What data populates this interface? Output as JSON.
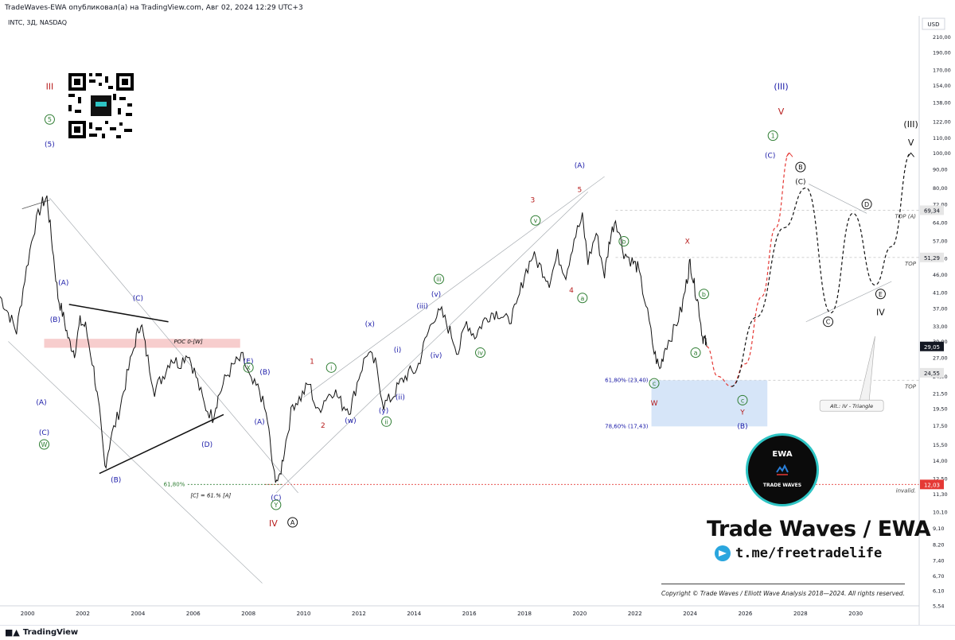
{
  "header": {
    "publisher_line": "TradeWaves-EWA опубликовал(а) на TradingView.com, Авг 02, 2024 12:29 UTC+3",
    "symbol_line": "INTC, 3Д, NASDAQ"
  },
  "footer": {
    "tradingview_label": "TradingView"
  },
  "branding": {
    "title": "Trade Waves / EWA",
    "telegram": "t.me/freetradelife",
    "copyright": "Copyright © Trade Waves / Elliott Wave Analysis 2018—2024. All rights reserved.",
    "badge_top": "EWA",
    "badge_bottom": "TRADE WAVES"
  },
  "colors": {
    "blue_label": "#1a1aa8",
    "red_label": "#b71c1c",
    "green_label": "#2e7d32",
    "black_label": "#111111",
    "candle": "#111111",
    "projection_red": "#e53935",
    "projection_black": "#111111",
    "zone_fill": "#cfe0f7",
    "poc_fill": "#f4b8b8",
    "invalid_line": "#e53935"
  },
  "chart_data": {
    "type": "candlestick",
    "title": "",
    "xlabel": "",
    "ylabel": "USD",
    "y_scale": "log",
    "ylim": [
      5.54,
      240
    ],
    "xlim": [
      1999,
      2032.3
    ],
    "x_ticks": [
      "2000",
      "2002",
      "2004",
      "2006",
      "2008",
      "2010",
      "2012",
      "2014",
      "2016",
      "2018",
      "2020",
      "2022",
      "2024",
      "2026",
      "2028",
      "2030"
    ],
    "y_ticks": [
      5.54,
      6.1,
      6.7,
      7.4,
      8.2,
      9.1,
      10.1,
      11.3,
      12.5,
      14.0,
      15.5,
      17.5,
      19.5,
      21.5,
      24.0,
      27.0,
      30.0,
      33.0,
      37.0,
      41.0,
      46.0,
      51.0,
      57.0,
      64.0,
      72.0,
      80.0,
      90.0,
      100.0,
      110.0,
      122.0,
      138.0,
      154.0,
      170.0,
      190.0,
      210.0,
      240.0
    ],
    "y_tick_labels": [
      "5,54",
      "6,10",
      "6,70",
      "7,40",
      "8,20",
      "9,10",
      "10,10",
      "11,30",
      "12,50",
      "14,00",
      "15,50",
      "17,50",
      "19,50",
      "21,50",
      "24,00",
      "27,00",
      "30,00",
      "33,00",
      "37,00",
      "41,00",
      "46,00",
      "51,00",
      "57,00",
      "64,00",
      "72,00",
      "80,00",
      "90,00",
      "100,00",
      "110,00",
      "122,00",
      "138,00",
      "154,00",
      "170,00",
      "190,00",
      "210,00",
      "240,00"
    ],
    "price_labels": [
      {
        "value": 69.34,
        "text": "69,34",
        "style": "gray"
      },
      {
        "value": 51.29,
        "text": "51,29",
        "style": "gray"
      },
      {
        "value": 29.05,
        "text": "29,05",
        "style": "dark"
      },
      {
        "value": 24.55,
        "text": "24,55",
        "style": "gray"
      },
      {
        "value": 12.03,
        "text": "12,03",
        "style": "red"
      }
    ],
    "horizontal_levels": [
      {
        "value": 69.34,
        "label": "TOP (A)"
      },
      {
        "value": 51.29,
        "label": "TOP"
      },
      {
        "value": 23.4,
        "label": "TOP"
      },
      {
        "value": 12.03,
        "label": "invalid."
      }
    ],
    "price_path": [
      [
        1999.0,
        40
      ],
      [
        1999.3,
        36
      ],
      [
        1999.6,
        32
      ],
      [
        1999.9,
        45
      ],
      [
        2000.2,
        60
      ],
      [
        2000.5,
        72
      ],
      [
        2000.7,
        75
      ],
      [
        2000.9,
        55
      ],
      [
        2001.1,
        40
      ],
      [
        2001.3,
        35
      ],
      [
        2001.5,
        30
      ],
      [
        2001.7,
        28
      ],
      [
        2001.9,
        34
      ],
      [
        2002.1,
        33
      ],
      [
        2002.4,
        25
      ],
      [
        2002.6,
        19
      ],
      [
        2002.8,
        13.5
      ],
      [
        2003.0,
        16
      ],
      [
        2003.3,
        19
      ],
      [
        2003.6,
        24
      ],
      [
        2003.9,
        30
      ],
      [
        2004.1,
        34
      ],
      [
        2004.3,
        28
      ],
      [
        2004.6,
        22
      ],
      [
        2004.9,
        24
      ],
      [
        2005.2,
        27
      ],
      [
        2005.5,
        26
      ],
      [
        2005.8,
        28
      ],
      [
        2006.1,
        24
      ],
      [
        2006.4,
        20
      ],
      [
        2006.7,
        18.5
      ],
      [
        2006.9,
        21
      ],
      [
        2007.2,
        24
      ],
      [
        2007.5,
        26
      ],
      [
        2007.8,
        27
      ],
      [
        2008.1,
        23
      ],
      [
        2008.4,
        22
      ],
      [
        2008.7,
        18
      ],
      [
        2008.9,
        13
      ],
      [
        2009.1,
        12.2
      ],
      [
        2009.3,
        15
      ],
      [
        2009.6,
        20
      ],
      [
        2009.9,
        21
      ],
      [
        2010.2,
        23
      ],
      [
        2010.5,
        19
      ],
      [
        2010.8,
        21
      ],
      [
        2011.1,
        22
      ],
      [
        2011.4,
        20
      ],
      [
        2011.7,
        19.5
      ],
      [
        2012.0,
        24
      ],
      [
        2012.3,
        28
      ],
      [
        2012.6,
        26
      ],
      [
        2012.9,
        20
      ],
      [
        2013.2,
        21
      ],
      [
        2013.5,
        23
      ],
      [
        2013.8,
        24.5
      ],
      [
        2014.1,
        25
      ],
      [
        2014.4,
        30
      ],
      [
        2014.7,
        35
      ],
      [
        2015.0,
        36
      ],
      [
        2015.3,
        32
      ],
      [
        2015.6,
        28
      ],
      [
        2015.9,
        34
      ],
      [
        2016.2,
        31
      ],
      [
        2016.5,
        34
      ],
      [
        2016.8,
        36
      ],
      [
        2017.1,
        36
      ],
      [
        2017.4,
        34
      ],
      [
        2017.7,
        37
      ],
      [
        2018.0,
        46
      ],
      [
        2018.3,
        52
      ],
      [
        2018.6,
        48
      ],
      [
        2018.9,
        44
      ],
      [
        2019.2,
        52
      ],
      [
        2019.5,
        46
      ],
      [
        2019.8,
        58
      ],
      [
        2020.1,
        66
      ],
      [
        2020.3,
        50
      ],
      [
        2020.6,
        60
      ],
      [
        2020.9,
        46
      ],
      [
        2021.1,
        58
      ],
      [
        2021.3,
        66
      ],
      [
        2021.6,
        53
      ],
      [
        2021.9,
        50
      ],
      [
        2022.1,
        48
      ],
      [
        2022.4,
        38
      ],
      [
        2022.7,
        28
      ],
      [
        2022.9,
        25
      ],
      [
        2023.1,
        29
      ],
      [
        2023.4,
        32
      ],
      [
        2023.7,
        37
      ],
      [
        2023.9,
        45
      ],
      [
        2024.0,
        50
      ],
      [
        2024.15,
        43
      ],
      [
        2024.3,
        38
      ],
      [
        2024.45,
        31
      ],
      [
        2024.55,
        30
      ],
      [
        2024.6,
        29.05
      ]
    ],
    "projection_primary": [
      [
        2024.6,
        29.05
      ],
      [
        2025.0,
        24
      ],
      [
        2025.5,
        22.5
      ],
      [
        2026.0,
        26
      ],
      [
        2026.6,
        40
      ],
      [
        2027.1,
        62
      ],
      [
        2027.6,
        100
      ]
    ],
    "projection_alternative": [
      [
        2025.5,
        22.5
      ],
      [
        2026.4,
        35
      ],
      [
        2027.4,
        62
      ],
      [
        2028.2,
        80
      ],
      [
        2029.1,
        36
      ],
      [
        2029.9,
        68
      ],
      [
        2030.7,
        43
      ],
      [
        2031.3,
        55
      ],
      [
        2032.0,
        100
      ]
    ],
    "fib_zone": {
      "x0": 2022.6,
      "x1": 2026.8,
      "y_top": 23.4,
      "y_bottom": 17.43,
      "labels": [
        "61,80% (23,40)",
        "78,60% (17,43)"
      ]
    },
    "poc_zone": {
      "x0": 2000.6,
      "x1": 2007.7,
      "y_top": 30.5,
      "y_bottom": 28.8,
      "label": "POC 0-[W]"
    },
    "fib_lower": {
      "value": 12.03,
      "label": "61,80%",
      "note": "[C] = 61.% [A]"
    },
    "wave_labels": [
      {
        "x": 2000.8,
        "y": 150,
        "text": "III",
        "color": "red"
      },
      {
        "x": 2000.8,
        "y": 122,
        "text": "5",
        "color": "green",
        "circle": true
      },
      {
        "x": 2000.8,
        "y": 104,
        "text": "(5)",
        "color": "blue"
      },
      {
        "x": 2001.3,
        "y": 43,
        "text": "(A)",
        "color": "blue"
      },
      {
        "x": 2001.0,
        "y": 34,
        "text": "(B)",
        "color": "blue"
      },
      {
        "x": 2000.5,
        "y": 20,
        "text": "(A)",
        "color": "blue"
      },
      {
        "x": 2000.6,
        "y": 16.5,
        "text": "(C)",
        "color": "blue"
      },
      {
        "x": 2000.6,
        "y": 15.3,
        "text": "W",
        "color": "green",
        "circle": true
      },
      {
        "x": 2003.2,
        "y": 12.2,
        "text": "(B)",
        "color": "blue"
      },
      {
        "x": 2004.0,
        "y": 39,
        "text": "(C)",
        "color": "blue"
      },
      {
        "x": 2006.5,
        "y": 15.3,
        "text": "(D)",
        "color": "blue"
      },
      {
        "x": 2008.0,
        "y": 26,
        "text": "(E)",
        "color": "blue"
      },
      {
        "x": 2008.0,
        "y": 25,
        "text": "X",
        "color": "green",
        "circle": true
      },
      {
        "x": 2008.4,
        "y": 17.7,
        "text": "(A)",
        "color": "blue"
      },
      {
        "x": 2008.6,
        "y": 24.3,
        "text": "(B)",
        "color": "blue"
      },
      {
        "x": 2009.0,
        "y": 10.9,
        "text": "(C)",
        "color": "blue"
      },
      {
        "x": 2009.0,
        "y": 10.4,
        "text": "Y",
        "color": "green",
        "circle": true
      },
      {
        "x": 2008.9,
        "y": 9.2,
        "text": "IV",
        "color": "red"
      },
      {
        "x": 2009.6,
        "y": 9.3,
        "text": "A",
        "color": "black",
        "circle": true
      },
      {
        "x": 2010.3,
        "y": 26,
        "text": "1",
        "color": "red"
      },
      {
        "x": 2011.0,
        "y": 25,
        "text": "i",
        "color": "green",
        "circle": true
      },
      {
        "x": 2010.7,
        "y": 17.3,
        "text": "2",
        "color": "red"
      },
      {
        "x": 2011.7,
        "y": 17.8,
        "text": "(w)",
        "color": "blue"
      },
      {
        "x": 2012.4,
        "y": 33,
        "text": "(x)",
        "color": "blue"
      },
      {
        "x": 2012.9,
        "y": 19,
        "text": "(y)",
        "color": "blue"
      },
      {
        "x": 2013.0,
        "y": 17.7,
        "text": "ii",
        "color": "green",
        "circle": true
      },
      {
        "x": 2013.4,
        "y": 28,
        "text": "(i)",
        "color": "blue"
      },
      {
        "x": 2013.5,
        "y": 20.7,
        "text": "(ii)",
        "color": "blue"
      },
      {
        "x": 2014.3,
        "y": 37,
        "text": "(iii)",
        "color": "blue"
      },
      {
        "x": 2014.8,
        "y": 40,
        "text": "(v)",
        "color": "blue"
      },
      {
        "x": 2014.9,
        "y": 44,
        "text": "iii",
        "color": "green",
        "circle": true
      },
      {
        "x": 2014.8,
        "y": 27,
        "text": "(iv)",
        "color": "blue"
      },
      {
        "x": 2016.4,
        "y": 27.5,
        "text": "iv",
        "color": "green",
        "circle": true
      },
      {
        "x": 2018.3,
        "y": 73,
        "text": "3",
        "color": "red"
      },
      {
        "x": 2018.4,
        "y": 64,
        "text": "v",
        "color": "green",
        "circle": true
      },
      {
        "x": 2019.7,
        "y": 41,
        "text": "4",
        "color": "red"
      },
      {
        "x": 2020.1,
        "y": 39,
        "text": "a",
        "color": "green",
        "circle": true
      },
      {
        "x": 2020.0,
        "y": 91,
        "text": "(A)",
        "color": "blue"
      },
      {
        "x": 2020.0,
        "y": 78,
        "text": "5",
        "color": "red"
      },
      {
        "x": 2021.6,
        "y": 56,
        "text": "b",
        "color": "green",
        "circle": true
      },
      {
        "x": 2022.7,
        "y": 22.6,
        "text": "c",
        "color": "green",
        "circle": true
      },
      {
        "x": 2022.7,
        "y": 19.9,
        "text": "W",
        "color": "red"
      },
      {
        "x": 2023.9,
        "y": 56,
        "text": "X",
        "color": "red"
      },
      {
        "x": 2024.5,
        "y": 40,
        "text": "b",
        "color": "green",
        "circle": true
      },
      {
        "x": 2024.2,
        "y": 27.5,
        "text": "a",
        "color": "green",
        "circle": true
      },
      {
        "x": 2025.9,
        "y": 20.3,
        "text": "c",
        "color": "green",
        "circle": true
      },
      {
        "x": 2025.9,
        "y": 18.8,
        "text": "Y",
        "color": "red"
      },
      {
        "x": 2025.9,
        "y": 17.2,
        "text": "(B)",
        "color": "blue"
      },
      {
        "x": 2027.3,
        "y": 150,
        "text": "(III)",
        "color": "blue"
      },
      {
        "x": 2027.3,
        "y": 128,
        "text": "V",
        "color": "red"
      },
      {
        "x": 2027.0,
        "y": 110,
        "text": "1",
        "color": "green",
        "circle": true
      },
      {
        "x": 2026.9,
        "y": 97,
        "text": "(C)",
        "color": "blue"
      },
      {
        "x": 2028.0,
        "y": 90,
        "text": "B",
        "color": "black",
        "circle": true
      },
      {
        "x": 2028.0,
        "y": 82,
        "text": "(C)",
        "color": "black"
      },
      {
        "x": 2029.0,
        "y": 33.5,
        "text": "C",
        "color": "black",
        "circle": true
      },
      {
        "x": 2030.4,
        "y": 71,
        "text": "D",
        "color": "black",
        "circle": true
      },
      {
        "x": 2030.9,
        "y": 40,
        "text": "E",
        "color": "black",
        "circle": true
      },
      {
        "x": 2030.9,
        "y": 35.5,
        "text": "IV",
        "color": "black"
      },
      {
        "x": 2032.0,
        "y": 118,
        "text": "(III)",
        "color": "black"
      },
      {
        "x": 2032.0,
        "y": 105,
        "text": "V",
        "color": "black"
      }
    ],
    "annotation_note": "Alt.: IV - Triangle"
  }
}
